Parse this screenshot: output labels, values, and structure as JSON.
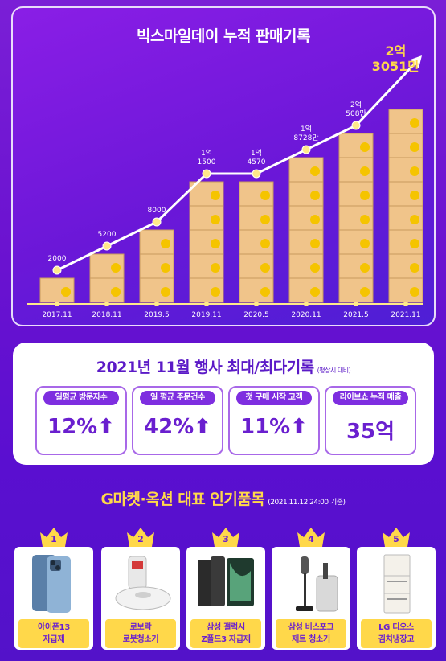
{
  "chart_title": "빅스마일데이 누적 판매기록",
  "big_total": {
    "line1": "2억",
    "line2": "3051만"
  },
  "chart_data": {
    "type": "bar",
    "title": "빅스마일데이 누적 판매기록",
    "categories": [
      "2017.11",
      "2018.11",
      "2019.5",
      "2019.11",
      "2020.5",
      "2020.11",
      "2021.5",
      "2021.11"
    ],
    "values": [
      2000,
      5200,
      8000,
      15000,
      14570,
      18728,
      20508,
      23051
    ],
    "value_labels": [
      [
        "2000"
      ],
      [
        "5200"
      ],
      [
        "8000"
      ],
      [
        "1억",
        "1500"
      ],
      [
        "1억",
        "4570"
      ],
      [
        "1억",
        "8728만"
      ],
      [
        "2억",
        "508만"
      ],
      [
        "2억",
        "3051만"
      ]
    ],
    "unit_note": "만",
    "ylim": [
      0,
      23051
    ],
    "grid": false,
    "colors": {
      "box": "#f0c48a",
      "box_edge": "#c99a5e",
      "smile": "#f5c400",
      "line": "#ffffff",
      "marker": "#ffe98a"
    }
  },
  "event": {
    "title": "2021년 11월 행사 최대/최다기록",
    "note": "(평상시 대비)",
    "stats": [
      {
        "label": "일평균 방문자수",
        "value": "12%⬆"
      },
      {
        "label": "일 평균 주문건수",
        "value": "42%⬆"
      },
      {
        "label": "첫 구매 시작 고객",
        "value": "11%⬆"
      },
      {
        "label": "라이브쇼 누적 매출",
        "value": "35억"
      }
    ]
  },
  "products": {
    "title": "G마켓·옥션 대표 인기품목",
    "note": "(2021.11.12 24:00 기준)",
    "items": [
      {
        "rank": "1",
        "name1": "아이폰13",
        "name2": "자급제",
        "icon": "phone-icon"
      },
      {
        "rank": "2",
        "name1": "로보락",
        "name2": "로봇청소기",
        "icon": "robot-vacuum-icon"
      },
      {
        "rank": "3",
        "name1": "삼성 갤럭시",
        "name2": "Z폴드3 자급제",
        "icon": "fold-phone-icon"
      },
      {
        "rank": "4",
        "name1": "삼성 비스포크",
        "name2": "제트 청소기",
        "icon": "stick-vacuum-icon"
      },
      {
        "rank": "5",
        "name1": "LG 디오스",
        "name2": "김치냉장고",
        "icon": "refrigerator-icon"
      }
    ]
  },
  "accent_colors": {
    "purple": "#6a1fcf",
    "yellow": "#ffd84a"
  }
}
